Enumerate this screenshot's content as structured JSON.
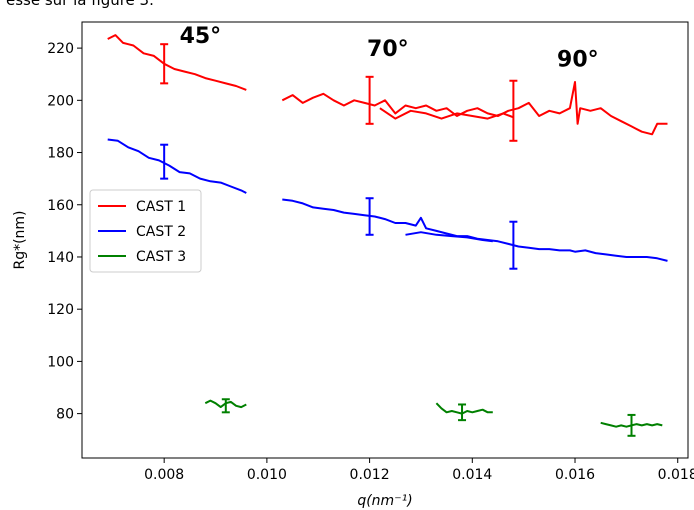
{
  "page": {
    "caption": "esse sur la figure 3."
  },
  "chart_data": {
    "type": "line",
    "xlabel": "q(nm⁻¹)",
    "ylabel": "Rg*(nm)",
    "xlim": [
      0.0064,
      0.0182
    ],
    "ylim": [
      63,
      230
    ],
    "xticks": [
      0.008,
      0.01,
      0.012,
      0.014,
      0.016,
      0.018
    ],
    "xtick_labels": [
      "0.008",
      "0.010",
      "0.012",
      "0.014",
      "0.016",
      "0.018"
    ],
    "yticks": [
      80,
      100,
      120,
      140,
      160,
      180,
      200,
      220
    ],
    "ytick_labels": [
      "80",
      "100",
      "120",
      "140",
      "160",
      "180",
      "200",
      "220"
    ],
    "grid": false,
    "legend_position": "center-left",
    "annotations": [
      {
        "text": "45°",
        "x": 0.0083,
        "y": 222
      },
      {
        "text": "70°",
        "x": 0.01195,
        "y": 217
      },
      {
        "text": "90°",
        "x": 0.01565,
        "y": 213
      }
    ],
    "series": [
      {
        "name": "CAST 1",
        "color": "#ff0000",
        "segments": [
          [
            [
              0.0069,
              223.5
            ],
            [
              0.00705,
              225
            ],
            [
              0.0072,
              222
            ],
            [
              0.0074,
              221
            ],
            [
              0.0076,
              218
            ],
            [
              0.0078,
              217
            ],
            [
              0.008,
              214
            ],
            [
              0.0082,
              212
            ],
            [
              0.0084,
              211
            ],
            [
              0.0086,
              210
            ],
            [
              0.0088,
              208.5
            ],
            [
              0.009,
              207.5
            ],
            [
              0.0092,
              206.5
            ],
            [
              0.0094,
              205.5
            ],
            [
              0.0096,
              204
            ]
          ],
          [
            [
              0.0103,
              200
            ],
            [
              0.0105,
              202
            ],
            [
              0.0107,
              199
            ],
            [
              0.0109,
              201
            ],
            [
              0.0111,
              202.5
            ],
            [
              0.0113,
              200
            ],
            [
              0.0115,
              198
            ],
            [
              0.0117,
              200
            ],
            [
              0.0119,
              199
            ],
            [
              0.0121,
              198
            ],
            [
              0.0123,
              200
            ],
            [
              0.0125,
              195
            ],
            [
              0.0127,
              198
            ],
            [
              0.0129,
              197
            ],
            [
              0.0131,
              198
            ],
            [
              0.0133,
              196
            ],
            [
              0.0135,
              197
            ],
            [
              0.0137,
              194
            ],
            [
              0.0139,
              196
            ],
            [
              0.0141,
              197
            ],
            [
              0.0143,
              195
            ],
            [
              0.0145,
              194
            ],
            [
              0.0147,
              196
            ],
            [
              0.0149,
              197
            ],
            [
              0.0151,
              199
            ],
            [
              0.0153,
              194
            ],
            [
              0.0155,
              196
            ],
            [
              0.0157,
              195
            ],
            [
              0.0159,
              197
            ],
            [
              0.016,
              207
            ],
            [
              0.01605,
              191
            ],
            [
              0.0161,
              197
            ],
            [
              0.0163,
              196
            ],
            [
              0.0165,
              197
            ],
            [
              0.0167,
              194
            ],
            [
              0.0169,
              192
            ],
            [
              0.0171,
              190
            ],
            [
              0.0173,
              188
            ],
            [
              0.0175,
              187
            ],
            [
              0.0176,
              191
            ],
            [
              0.0178,
              191
            ]
          ],
          [
            [
              0.0122,
              197
            ],
            [
              0.0125,
              193
            ],
            [
              0.0128,
              196
            ],
            [
              0.0131,
              195
            ],
            [
              0.0134,
              193
            ],
            [
              0.0137,
              195
            ],
            [
              0.014,
              194
            ],
            [
              0.0143,
              193
            ],
            [
              0.0146,
              195
            ],
            [
              0.0148,
              193.5
            ]
          ]
        ],
        "errorbars": [
          {
            "x": 0.008,
            "y": 214,
            "yerr": 7.5
          },
          {
            "x": 0.012,
            "y": 200,
            "yerr": 9
          },
          {
            "x": 0.0148,
            "y": 196,
            "yerr": 11.5
          }
        ]
      },
      {
        "name": "CAST 2",
        "color": "#0000ff",
        "segments": [
          [
            [
              0.0069,
              185
            ],
            [
              0.0071,
              184.5
            ],
            [
              0.0073,
              182
            ],
            [
              0.0075,
              180.5
            ],
            [
              0.0077,
              178
            ],
            [
              0.0079,
              177
            ],
            [
              0.0081,
              175
            ],
            [
              0.0083,
              172.5
            ],
            [
              0.0085,
              172
            ],
            [
              0.0087,
              170
            ],
            [
              0.0089,
              169
            ],
            [
              0.0091,
              168.5
            ],
            [
              0.0093,
              167
            ],
            [
              0.0095,
              165.5
            ],
            [
              0.0096,
              164.5
            ]
          ],
          [
            [
              0.0103,
              162
            ],
            [
              0.0105,
              161.5
            ],
            [
              0.0107,
              160.5
            ],
            [
              0.0109,
              159
            ],
            [
              0.0111,
              158.5
            ],
            [
              0.0113,
              158
            ],
            [
              0.0115,
              157
            ],
            [
              0.0117,
              156.5
            ],
            [
              0.0119,
              156
            ],
            [
              0.0121,
              155.5
            ],
            [
              0.0123,
              154.5
            ],
            [
              0.0125,
              153
            ],
            [
              0.0127,
              153
            ],
            [
              0.0129,
              152
            ],
            [
              0.013,
              155
            ],
            [
              0.0131,
              151
            ],
            [
              0.0133,
              150
            ],
            [
              0.0135,
              149
            ],
            [
              0.0137,
              148
            ],
            [
              0.0139,
              148
            ],
            [
              0.0141,
              147
            ],
            [
              0.0143,
              146.5
            ],
            [
              0.0145,
              146
            ],
            [
              0.0147,
              145
            ],
            [
              0.0149,
              144
            ],
            [
              0.0151,
              143.5
            ],
            [
              0.0153,
              143
            ],
            [
              0.0155,
              143
            ],
            [
              0.0157,
              142.5
            ],
            [
              0.0159,
              142.5
            ],
            [
              0.016,
              142
            ],
            [
              0.0162,
              142.5
            ],
            [
              0.0164,
              141.5
            ],
            [
              0.0166,
              141
            ],
            [
              0.0168,
              140.5
            ],
            [
              0.017,
              140
            ],
            [
              0.0172,
              140
            ],
            [
              0.0174,
              140
            ],
            [
              0.0176,
              139.5
            ],
            [
              0.0178,
              138.5
            ]
          ],
          [
            [
              0.0127,
              148.5
            ],
            [
              0.013,
              149.5
            ],
            [
              0.0133,
              148.5
            ],
            [
              0.0136,
              148
            ],
            [
              0.0139,
              147.5
            ],
            [
              0.0142,
              146.5
            ],
            [
              0.0144,
              146
            ]
          ]
        ],
        "errorbars": [
          {
            "x": 0.008,
            "y": 176.5,
            "yerr": 6.5
          },
          {
            "x": 0.012,
            "y": 155.5,
            "yerr": 7
          },
          {
            "x": 0.0148,
            "y": 144.5,
            "yerr": 9
          }
        ]
      },
      {
        "name": "CAST 3",
        "color": "#008000",
        "segments": [
          [
            [
              0.0088,
              84
            ],
            [
              0.0089,
              85
            ],
            [
              0.009,
              84
            ],
            [
              0.0091,
              82.5
            ],
            [
              0.0092,
              84
            ],
            [
              0.0093,
              84.5
            ],
            [
              0.0094,
              83
            ],
            [
              0.0095,
              82.5
            ],
            [
              0.0096,
              83.5
            ]
          ],
          [
            [
              0.0133,
              84
            ],
            [
              0.0134,
              82
            ],
            [
              0.0135,
              80.5
            ],
            [
              0.0136,
              81
            ],
            [
              0.0137,
              80.5
            ],
            [
              0.0138,
              80
            ],
            [
              0.0139,
              81
            ],
            [
              0.014,
              80.5
            ],
            [
              0.0141,
              81
            ],
            [
              0.0142,
              81.5
            ],
            [
              0.0143,
              80.5
            ],
            [
              0.0144,
              80.5
            ]
          ],
          [
            [
              0.0165,
              76.5
            ],
            [
              0.0166,
              76
            ],
            [
              0.0167,
              75.5
            ],
            [
              0.0168,
              75
            ],
            [
              0.0169,
              75.5
            ],
            [
              0.017,
              75
            ],
            [
              0.0171,
              75.5
            ],
            [
              0.0172,
              76
            ],
            [
              0.0173,
              75.5
            ],
            [
              0.0174,
              76
            ],
            [
              0.0175,
              75.5
            ],
            [
              0.0176,
              76
            ],
            [
              0.0177,
              75.5
            ]
          ]
        ],
        "errorbars": [
          {
            "x": 0.0092,
            "y": 83,
            "yerr": 2.5
          },
          {
            "x": 0.0138,
            "y": 80.5,
            "yerr": 3
          },
          {
            "x": 0.0171,
            "y": 75.5,
            "yerr": 4
          }
        ]
      }
    ]
  }
}
